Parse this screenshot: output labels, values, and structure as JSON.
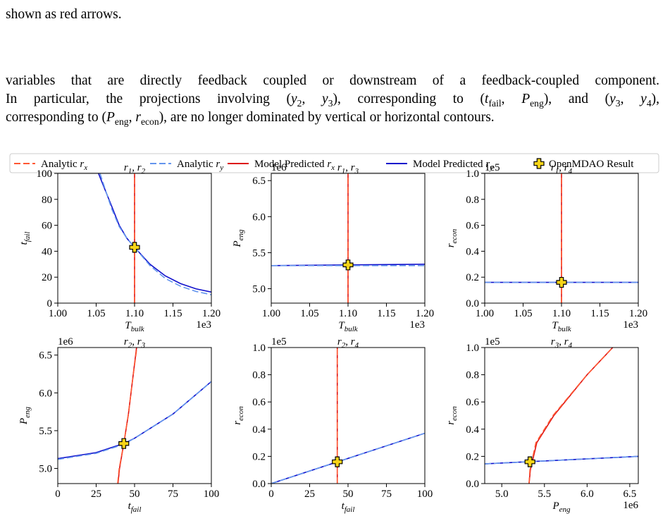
{
  "text": {
    "line0": [
      "shown as red arrows."
    ],
    "paragraph": [
      [
        "variables that are directly feedback coupled or downstream of a feedback-coupled component."
      ],
      [
        "In particular, the projections involving (",
        {
          "i": "y",
          "sub": "2"
        },
        ", ",
        {
          "i": "y",
          "sub": "3"
        },
        "), corresponding to (",
        {
          "i": "t",
          "sub": "fail"
        },
        ", ",
        {
          "i": "P",
          "sub": "eng"
        },
        "), and (",
        {
          "i": "y",
          "sub": "3"
        },
        ", ",
        {
          "i": "y",
          "sub": "4"
        },
        "),"
      ],
      [
        "corresponding to (",
        {
          "i": "P",
          "sub": "eng"
        },
        ", ",
        {
          "i": "r",
          "sub": "econ"
        },
        "), are no longer dominated by vertical or horizontal contours."
      ]
    ]
  },
  "legend": [
    {
      "name": [
        "Analytic ",
        {
          "i": "r",
          "sub": "x"
        }
      ],
      "color": "#ff5733",
      "dash": "9 4"
    },
    {
      "name": [
        "Analytic ",
        {
          "i": "r",
          "sub": "y"
        }
      ],
      "color": "#6495ed",
      "dash": "9 4"
    },
    {
      "name": [
        "Model Predicted ",
        {
          "i": "r",
          "sub": "x"
        }
      ],
      "color": "#dd1111",
      "dash": null
    },
    {
      "name": [
        "Model Predicted ",
        {
          "i": "r",
          "sub": "y"
        }
      ],
      "color": "#1111cc",
      "dash": null
    },
    {
      "name": [
        "OpenMDAO Result"
      ],
      "color": "#f7d417"
    }
  ],
  "chart_data": [
    {
      "type": "line",
      "title": [
        {
          "i": "r",
          "sub": "1"
        },
        ", ",
        {
          "i": "r",
          "sub": "2"
        }
      ],
      "xlabel": [
        {
          "i": "T",
          "sub": "bulk"
        }
      ],
      "ylabel": [
        {
          "i": "t",
          "sub": "fail"
        }
      ],
      "xoffset": "1e3",
      "xlim": [
        1.0,
        1.2
      ],
      "ylim": [
        0,
        100
      ],
      "xticks": [
        {
          "value": 1.0,
          "label": "1.00"
        },
        {
          "value": 1.05,
          "label": "1.05"
        },
        {
          "value": 1.1,
          "label": "1.10"
        },
        {
          "value": 1.15,
          "label": "1.15"
        },
        {
          "value": 1.2,
          "label": "1.20"
        }
      ],
      "yticks": [
        0,
        20,
        40,
        60,
        80,
        100
      ],
      "series": [
        {
          "x": [
            1.1,
            1.1
          ],
          "values": [
            0,
            100
          ]
        },
        {
          "x": [
            1.055,
            1.07,
            1.08,
            1.09,
            1.1,
            1.12,
            1.14,
            1.16,
            1.18,
            1.2
          ],
          "values": [
            100,
            73,
            59,
            50,
            43,
            29,
            19,
            13,
            9,
            6.5
          ]
        },
        {
          "x": [
            1.1,
            1.1
          ],
          "values": [
            0,
            100
          ]
        },
        {
          "x": [
            1.053,
            1.07,
            1.08,
            1.09,
            1.1,
            1.12,
            1.14,
            1.16,
            1.18,
            1.2
          ],
          "values": [
            100,
            75,
            60,
            50,
            43,
            30,
            21,
            15,
            11,
            8.5
          ]
        }
      ],
      "point": [
        1.1,
        43
      ]
    },
    {
      "type": "line",
      "title": [
        {
          "i": "r",
          "sub": "1"
        },
        ", ",
        {
          "i": "r",
          "sub": "3"
        }
      ],
      "xlabel": [
        {
          "i": "T",
          "sub": "bulk"
        }
      ],
      "ylabel": [
        {
          "i": "P",
          "sub": "eng"
        }
      ],
      "xoffset": "1e3",
      "yoffset": "1e6",
      "xlim": [
        1.0,
        1.2
      ],
      "ylim": [
        4.8,
        6.6
      ],
      "xticks": [
        {
          "value": 1.0,
          "label": "1.00"
        },
        {
          "value": 1.05,
          "label": "1.05"
        },
        {
          "value": 1.1,
          "label": "1.10"
        },
        {
          "value": 1.15,
          "label": "1.15"
        },
        {
          "value": 1.2,
          "label": "1.20"
        }
      ],
      "yticks": [
        {
          "value": 5.0,
          "label": "5.0"
        },
        5.5,
        {
          "value": 6.0,
          "label": "6.0"
        },
        6.5
      ],
      "series": [
        {
          "x": [
            1.1,
            1.1
          ],
          "values": [
            4.8,
            6.6
          ]
        },
        {
          "x": [
            1.0,
            1.2
          ],
          "values": [
            5.32,
            5.32
          ]
        },
        {
          "x": [
            1.1,
            1.1
          ],
          "values": [
            4.8,
            6.6
          ]
        },
        {
          "x": [
            1.0,
            1.2
          ],
          "values": [
            5.32,
            5.34
          ]
        }
      ],
      "point": [
        1.1,
        5.33
      ]
    },
    {
      "type": "line",
      "title": [
        {
          "i": "r",
          "sub": "1"
        },
        ", ",
        {
          "i": "r",
          "sub": "4"
        }
      ],
      "xlabel": [
        {
          "i": "T",
          "sub": "bulk"
        }
      ],
      "ylabel": [
        {
          "i": "r",
          "sub": "econ"
        }
      ],
      "xoffset": "1e3",
      "yoffset": "1e5",
      "xlim": [
        1.0,
        1.2
      ],
      "ylim": [
        0,
        1.0
      ],
      "xticks": [
        {
          "value": 1.0,
          "label": "1.00"
        },
        {
          "value": 1.05,
          "label": "1.05"
        },
        {
          "value": 1.1,
          "label": "1.10"
        },
        {
          "value": 1.15,
          "label": "1.15"
        },
        {
          "value": 1.2,
          "label": "1.20"
        }
      ],
      "yticks": [
        {
          "value": 0,
          "label": "0.0"
        },
        0.2,
        0.4,
        0.6,
        0.8,
        {
          "value": 1,
          "label": "1.0"
        }
      ],
      "series": [
        {
          "x": [
            1.1,
            1.1
          ],
          "values": [
            0,
            1.0
          ]
        },
        {
          "x": [
            1.0,
            1.2
          ],
          "values": [
            0.16,
            0.16
          ]
        },
        {
          "x": [
            1.1,
            1.1
          ],
          "values": [
            0,
            1.0
          ]
        },
        {
          "x": [
            1.0,
            1.2
          ],
          "values": [
            0.16,
            0.16
          ]
        }
      ],
      "point": [
        1.1,
        0.16
      ]
    },
    {
      "type": "line",
      "title": [
        {
          "i": "r",
          "sub": "2"
        },
        ", ",
        {
          "i": "r",
          "sub": "3"
        }
      ],
      "xlabel": [
        {
          "i": "t",
          "sub": "fail"
        }
      ],
      "ylabel": [
        {
          "i": "P",
          "sub": "eng"
        }
      ],
      "yoffset": "1e6",
      "xlim": [
        0,
        100
      ],
      "ylim": [
        4.8,
        6.6
      ],
      "xticks": [
        0,
        25,
        50,
        75,
        100
      ],
      "yticks": [
        {
          "value": 5.0,
          "label": "5.0"
        },
        5.5,
        {
          "value": 6.0,
          "label": "6.0"
        },
        6.5
      ],
      "series": [
        {
          "x": [
            39,
            40,
            43,
            46,
            49,
            51.5
          ],
          "values": [
            4.8,
            5.0,
            5.33,
            5.72,
            6.22,
            6.6
          ]
        },
        {
          "x": [
            0,
            25,
            43,
            50,
            75,
            100
          ],
          "values": [
            5.12,
            5.2,
            5.32,
            5.4,
            5.72,
            6.15
          ]
        },
        {
          "x": [
            39.2,
            40.2,
            43,
            46,
            49,
            51.3
          ],
          "values": [
            4.8,
            5.0,
            5.33,
            5.72,
            6.22,
            6.6
          ]
        },
        {
          "x": [
            0,
            25,
            43,
            50,
            75,
            100
          ],
          "values": [
            5.13,
            5.21,
            5.33,
            5.4,
            5.72,
            6.15
          ]
        }
      ],
      "point": [
        43,
        5.33
      ]
    },
    {
      "type": "line",
      "title": [
        {
          "i": "r",
          "sub": "2"
        },
        ", ",
        {
          "i": "r",
          "sub": "4"
        }
      ],
      "xlabel": [
        {
          "i": "t",
          "sub": "fail"
        }
      ],
      "ylabel": [
        {
          "i": "r",
          "sub": "econ"
        }
      ],
      "yoffset": "1e5",
      "xlim": [
        0,
        100
      ],
      "ylim": [
        0,
        1.0
      ],
      "xticks": [
        0,
        25,
        50,
        75,
        100
      ],
      "yticks": [
        {
          "value": 0,
          "label": "0.0"
        },
        0.2,
        0.4,
        0.6,
        0.8,
        {
          "value": 1,
          "label": "1.0"
        }
      ],
      "series": [
        {
          "x": [
            43,
            43
          ],
          "values": [
            0,
            1.0
          ]
        },
        {
          "x": [
            0,
            100
          ],
          "values": [
            0,
            0.37
          ]
        },
        {
          "x": [
            43,
            43
          ],
          "values": [
            0,
            1.0
          ]
        },
        {
          "x": [
            0,
            100
          ],
          "values": [
            0,
            0.37
          ]
        }
      ],
      "point": [
        43,
        0.16
      ]
    },
    {
      "type": "line",
      "title": [
        {
          "i": "r",
          "sub": "3"
        },
        ", ",
        {
          "i": "r",
          "sub": "4"
        }
      ],
      "xlabel": [
        {
          "i": "P",
          "sub": "eng"
        }
      ],
      "ylabel": [
        {
          "i": "r",
          "sub": "econ"
        }
      ],
      "xoffset": "1e6",
      "yoffset": "1e5",
      "xlim": [
        4.8,
        6.6
      ],
      "ylim": [
        0,
        1.0
      ],
      "xticks": [
        {
          "value": 5.0,
          "label": "5.0"
        },
        5.5,
        {
          "value": 6.0,
          "label": "6.0"
        },
        6.5
      ],
      "yticks": [
        {
          "value": 0,
          "label": "0.0"
        },
        0.2,
        0.4,
        0.6,
        0.8,
        {
          "value": 1,
          "label": "1.0"
        }
      ],
      "series": [
        {
          "x": [
            5.32,
            5.33,
            5.4,
            5.6,
            6.0,
            6.3
          ],
          "values": [
            0,
            0.1,
            0.3,
            0.5,
            0.8,
            1.0
          ]
        },
        {
          "x": [
            4.8,
            6.6
          ],
          "values": [
            0.145,
            0.2
          ]
        },
        {
          "x": [
            5.32,
            5.335,
            5.41,
            5.61,
            6.0,
            6.3
          ],
          "values": [
            0,
            0.1,
            0.3,
            0.5,
            0.8,
            1.0
          ]
        },
        {
          "x": [
            4.8,
            6.6
          ],
          "values": [
            0.145,
            0.2
          ]
        }
      ],
      "point": [
        5.33,
        0.16
      ]
    }
  ]
}
